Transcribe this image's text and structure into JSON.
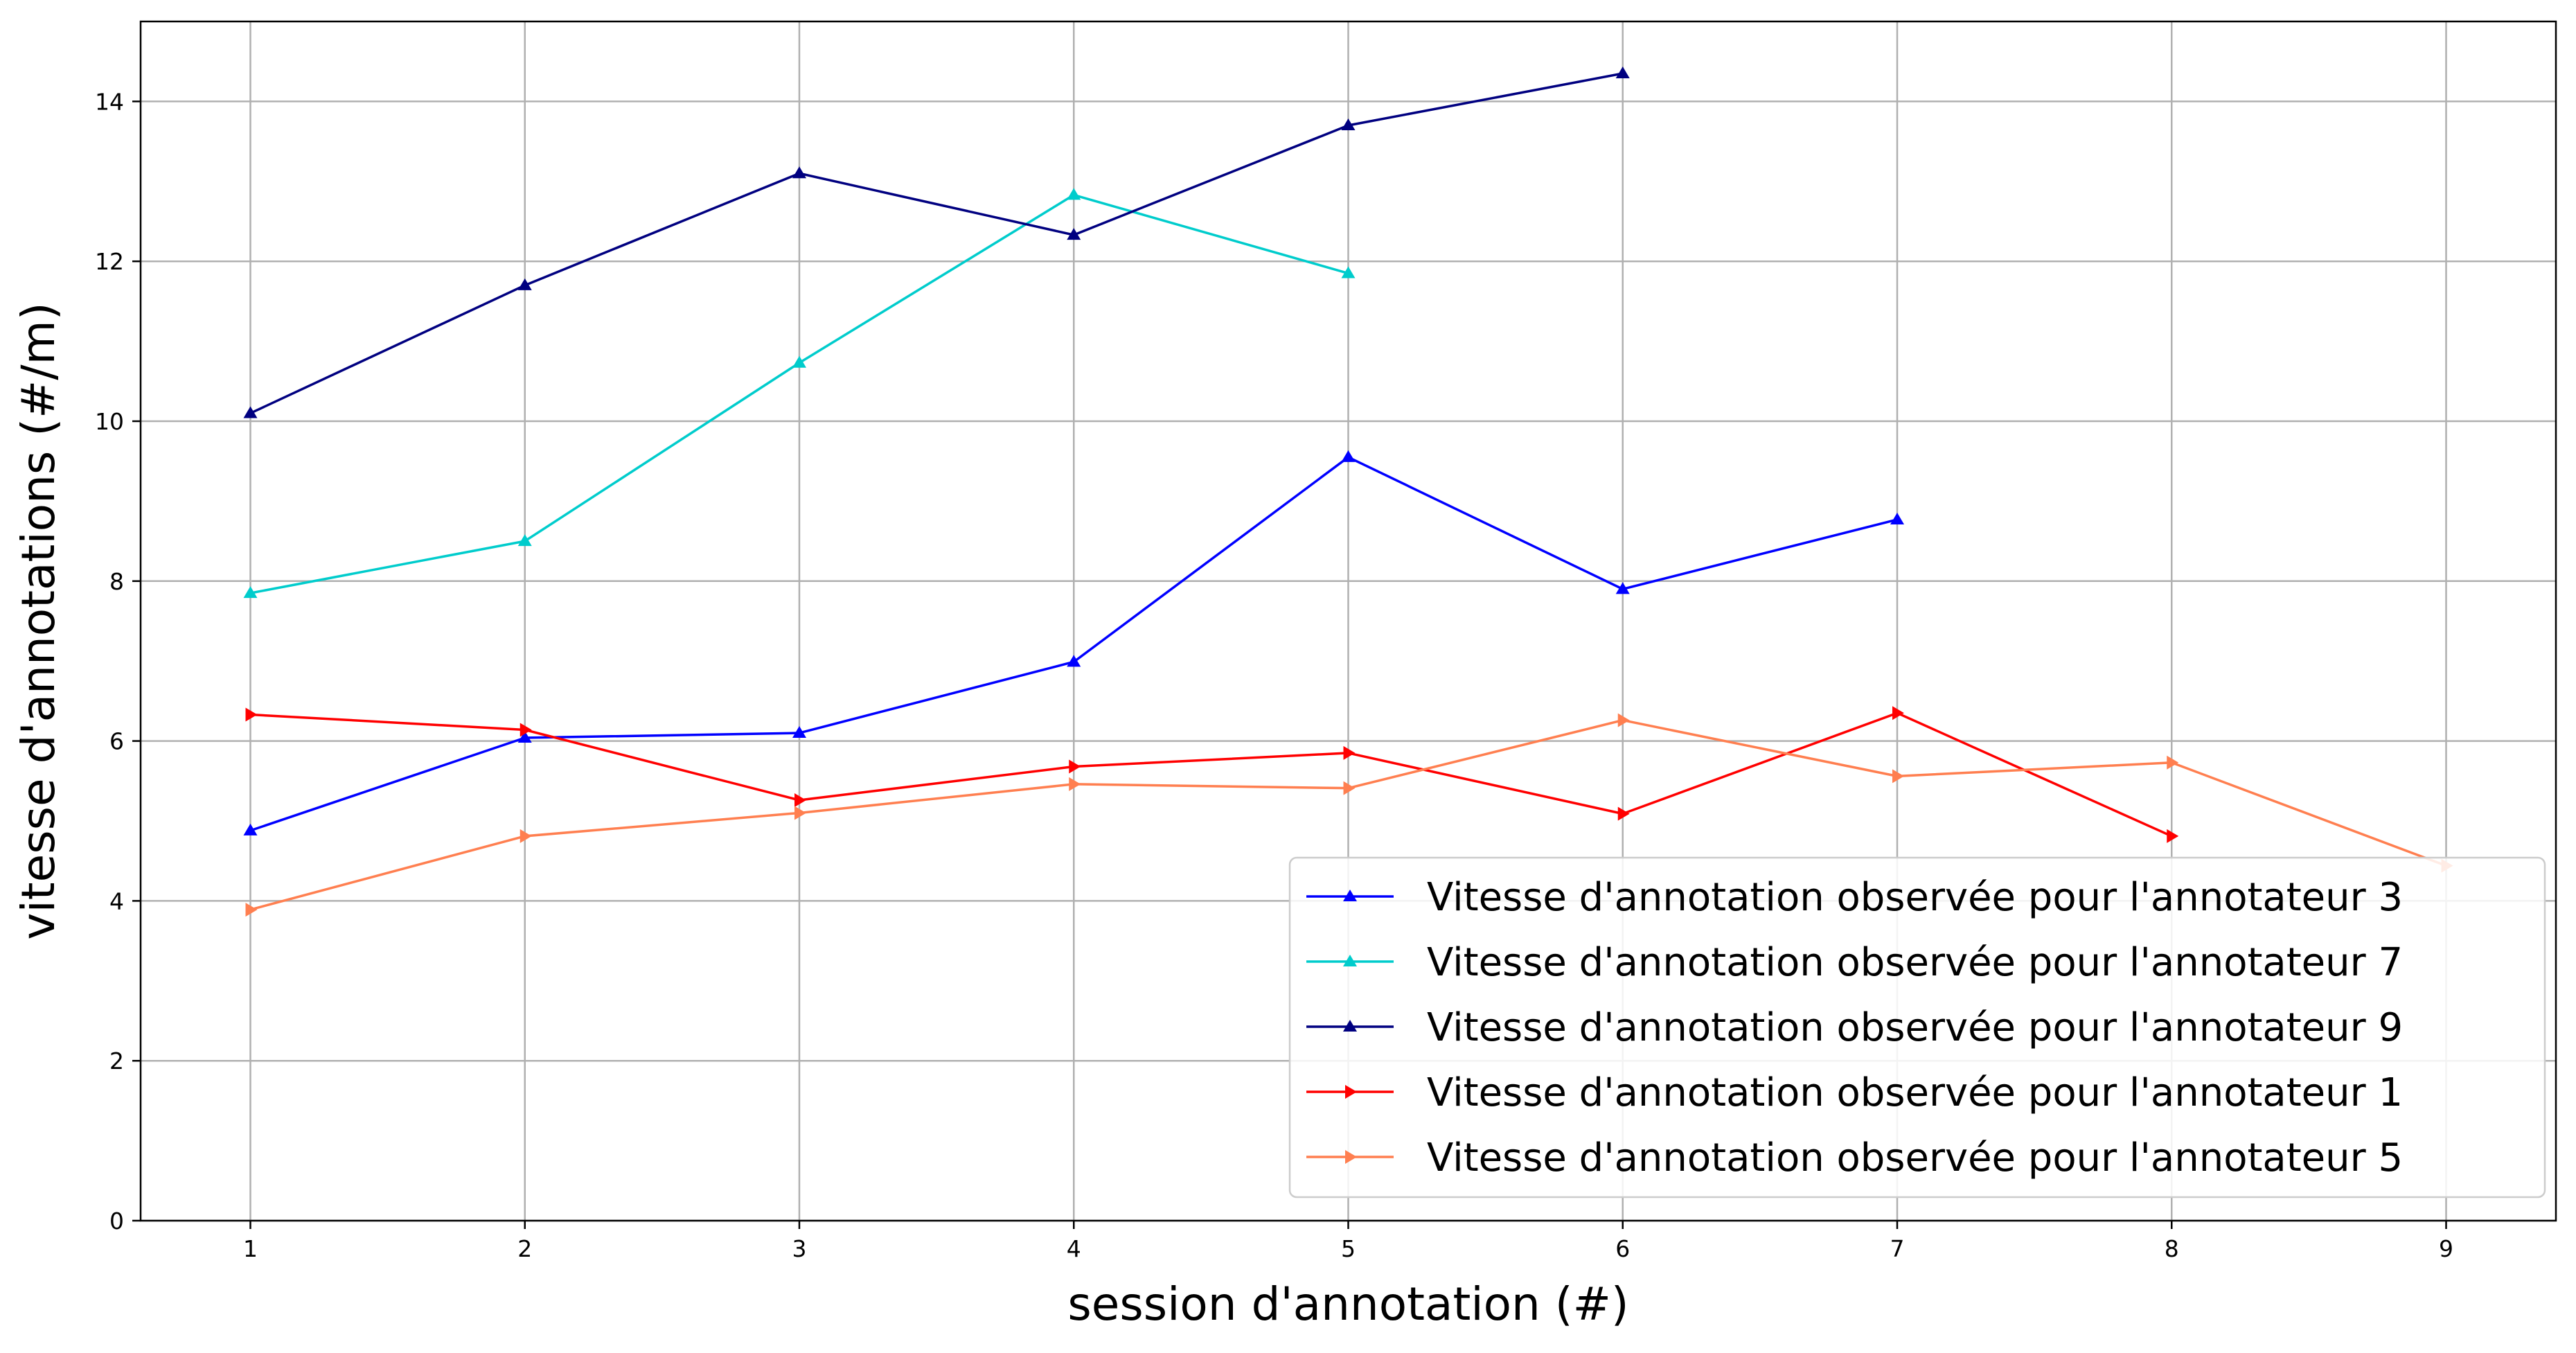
{
  "chart_data": {
    "type": "line",
    "title": "",
    "xlabel": "session d'annotation (#)",
    "ylabel": "vitesse d'annotations (#/m)",
    "xlim": [
      0.6,
      9.4
    ],
    "ylim": [
      0,
      15
    ],
    "xticks": [
      1,
      2,
      3,
      4,
      5,
      6,
      7,
      8,
      9
    ],
    "yticks": [
      0,
      2,
      4,
      6,
      8,
      10,
      12,
      14
    ],
    "grid": true,
    "legend_position": "lower-right",
    "series": [
      {
        "name": "Vitesse d'annotation observée pour l'annotateur 3",
        "color": "#0000ff",
        "marker": "triangle-up",
        "x": [
          1,
          2,
          3,
          4,
          5,
          6,
          7
        ],
        "y": [
          4.88,
          6.04,
          6.1,
          6.99,
          9.55,
          7.9,
          8.77
        ]
      },
      {
        "name": "Vitesse d'annotation observée pour l'annotateur 7",
        "color": "#00cccc",
        "marker": "triangle-up",
        "x": [
          1,
          2,
          3,
          4,
          5
        ],
        "y": [
          7.85,
          8.5,
          10.73,
          12.83,
          11.85
        ]
      },
      {
        "name": "Vitesse d'annotation observée pour l'annotateur 9",
        "color": "#000080",
        "marker": "triangle-up",
        "x": [
          1,
          2,
          3,
          4,
          5,
          6
        ],
        "y": [
          10.1,
          11.7,
          13.1,
          12.33,
          13.7,
          14.35
        ]
      },
      {
        "name": "Vitesse d'annotation observée pour l'annotateur 1",
        "color": "#ff0000",
        "marker": "triangle-right",
        "x": [
          1,
          2,
          3,
          4,
          5,
          6,
          7,
          8
        ],
        "y": [
          6.33,
          6.14,
          5.26,
          5.68,
          5.85,
          5.09,
          6.35,
          4.81
        ]
      },
      {
        "name": "Vitesse d'annotation observée pour l'annotateur 5",
        "color": "#ff7f50",
        "marker": "triangle-right",
        "x": [
          1,
          2,
          3,
          4,
          5,
          6,
          7,
          8,
          9
        ],
        "y": [
          3.89,
          4.81,
          5.1,
          5.46,
          5.41,
          6.26,
          5.56,
          5.73,
          4.44
        ]
      }
    ]
  }
}
